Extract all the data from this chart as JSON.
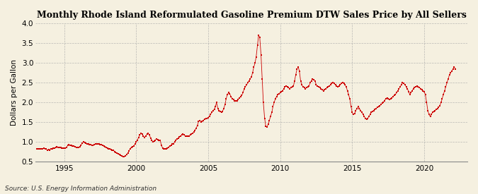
{
  "title": "Monthly Rhode Island Reformulated Gasoline Premium DTW Sales Price by All Sellers",
  "ylabel": "Dollars per Gallon",
  "source": "Source: U.S. Energy Information Administration",
  "background_color": "#f5f0e0",
  "marker_color": "#cc0000",
  "xlim": [
    1993.0,
    2023.0
  ],
  "ylim": [
    0.5,
    4.0
  ],
  "yticks": [
    0.5,
    1.0,
    1.5,
    2.0,
    2.5,
    3.0,
    3.5,
    4.0
  ],
  "xticks": [
    1995,
    2000,
    2005,
    2010,
    2015,
    2020
  ],
  "data": [
    [
      1993.08,
      0.83
    ],
    [
      1993.17,
      0.82
    ],
    [
      1993.25,
      0.83
    ],
    [
      1993.33,
      0.82
    ],
    [
      1993.42,
      0.82
    ],
    [
      1993.5,
      0.83
    ],
    [
      1993.58,
      0.84
    ],
    [
      1993.67,
      0.83
    ],
    [
      1993.75,
      0.82
    ],
    [
      1993.83,
      0.8
    ],
    [
      1993.92,
      0.81
    ],
    [
      1994.0,
      0.8
    ],
    [
      1994.08,
      0.82
    ],
    [
      1994.17,
      0.83
    ],
    [
      1994.25,
      0.84
    ],
    [
      1994.33,
      0.85
    ],
    [
      1994.42,
      0.87
    ],
    [
      1994.5,
      0.88
    ],
    [
      1994.58,
      0.87
    ],
    [
      1994.67,
      0.86
    ],
    [
      1994.75,
      0.86
    ],
    [
      1994.83,
      0.85
    ],
    [
      1994.92,
      0.85
    ],
    [
      1995.0,
      0.84
    ],
    [
      1995.08,
      0.85
    ],
    [
      1995.17,
      0.87
    ],
    [
      1995.25,
      0.92
    ],
    [
      1995.33,
      0.93
    ],
    [
      1995.42,
      0.92
    ],
    [
      1995.5,
      0.91
    ],
    [
      1995.58,
      0.9
    ],
    [
      1995.67,
      0.89
    ],
    [
      1995.75,
      0.88
    ],
    [
      1995.83,
      0.87
    ],
    [
      1995.92,
      0.86
    ],
    [
      1996.0,
      0.87
    ],
    [
      1996.08,
      0.88
    ],
    [
      1996.17,
      0.92
    ],
    [
      1996.25,
      0.97
    ],
    [
      1996.33,
      1.0
    ],
    [
      1996.42,
      0.98
    ],
    [
      1996.5,
      0.97
    ],
    [
      1996.58,
      0.96
    ],
    [
      1996.67,
      0.95
    ],
    [
      1996.75,
      0.94
    ],
    [
      1996.83,
      0.93
    ],
    [
      1996.92,
      0.92
    ],
    [
      1997.0,
      0.91
    ],
    [
      1997.08,
      0.93
    ],
    [
      1997.17,
      0.95
    ],
    [
      1997.25,
      0.96
    ],
    [
      1997.33,
      0.96
    ],
    [
      1997.42,
      0.95
    ],
    [
      1997.5,
      0.94
    ],
    [
      1997.58,
      0.93
    ],
    [
      1997.67,
      0.91
    ],
    [
      1997.75,
      0.9
    ],
    [
      1997.83,
      0.88
    ],
    [
      1997.92,
      0.86
    ],
    [
      1998.0,
      0.84
    ],
    [
      1998.08,
      0.83
    ],
    [
      1998.17,
      0.82
    ],
    [
      1998.25,
      0.81
    ],
    [
      1998.33,
      0.8
    ],
    [
      1998.42,
      0.79
    ],
    [
      1998.5,
      0.76
    ],
    [
      1998.58,
      0.74
    ],
    [
      1998.67,
      0.72
    ],
    [
      1998.75,
      0.7
    ],
    [
      1998.83,
      0.68
    ],
    [
      1998.92,
      0.66
    ],
    [
      1999.0,
      0.64
    ],
    [
      1999.08,
      0.63
    ],
    [
      1999.17,
      0.63
    ],
    [
      1999.25,
      0.65
    ],
    [
      1999.33,
      0.68
    ],
    [
      1999.42,
      0.72
    ],
    [
      1999.5,
      0.78
    ],
    [
      1999.58,
      0.83
    ],
    [
      1999.67,
      0.87
    ],
    [
      1999.75,
      0.88
    ],
    [
      1999.83,
      0.9
    ],
    [
      1999.92,
      0.95
    ],
    [
      2000.0,
      1.0
    ],
    [
      2000.08,
      1.05
    ],
    [
      2000.17,
      1.12
    ],
    [
      2000.25,
      1.18
    ],
    [
      2000.33,
      1.22
    ],
    [
      2000.42,
      1.2
    ],
    [
      2000.5,
      1.15
    ],
    [
      2000.58,
      1.12
    ],
    [
      2000.67,
      1.15
    ],
    [
      2000.75,
      1.2
    ],
    [
      2000.83,
      1.22
    ],
    [
      2000.92,
      1.18
    ],
    [
      2001.0,
      1.1
    ],
    [
      2001.08,
      1.05
    ],
    [
      2001.17,
      1.0
    ],
    [
      2001.25,
      1.02
    ],
    [
      2001.33,
      1.05
    ],
    [
      2001.42,
      1.08
    ],
    [
      2001.5,
      1.06
    ],
    [
      2001.58,
      1.05
    ],
    [
      2001.67,
      1.04
    ],
    [
      2001.75,
      0.92
    ],
    [
      2001.83,
      0.85
    ],
    [
      2001.92,
      0.82
    ],
    [
      2002.0,
      0.82
    ],
    [
      2002.08,
      0.83
    ],
    [
      2002.17,
      0.85
    ],
    [
      2002.25,
      0.87
    ],
    [
      2002.33,
      0.9
    ],
    [
      2002.42,
      0.92
    ],
    [
      2002.5,
      0.95
    ],
    [
      2002.58,
      0.95
    ],
    [
      2002.67,
      1.0
    ],
    [
      2002.75,
      1.05
    ],
    [
      2002.83,
      1.08
    ],
    [
      2002.92,
      1.1
    ],
    [
      2003.0,
      1.13
    ],
    [
      2003.08,
      1.15
    ],
    [
      2003.17,
      1.18
    ],
    [
      2003.25,
      1.2
    ],
    [
      2003.33,
      1.18
    ],
    [
      2003.42,
      1.15
    ],
    [
      2003.5,
      1.15
    ],
    [
      2003.58,
      1.15
    ],
    [
      2003.67,
      1.15
    ],
    [
      2003.75,
      1.18
    ],
    [
      2003.83,
      1.2
    ],
    [
      2003.92,
      1.22
    ],
    [
      2004.0,
      1.25
    ],
    [
      2004.08,
      1.3
    ],
    [
      2004.17,
      1.35
    ],
    [
      2004.25,
      1.42
    ],
    [
      2004.33,
      1.52
    ],
    [
      2004.42,
      1.55
    ],
    [
      2004.5,
      1.5
    ],
    [
      2004.58,
      1.52
    ],
    [
      2004.67,
      1.55
    ],
    [
      2004.75,
      1.58
    ],
    [
      2004.83,
      1.6
    ],
    [
      2004.92,
      1.6
    ],
    [
      2005.0,
      1.62
    ],
    [
      2005.08,
      1.65
    ],
    [
      2005.17,
      1.7
    ],
    [
      2005.25,
      1.75
    ],
    [
      2005.33,
      1.8
    ],
    [
      2005.42,
      1.82
    ],
    [
      2005.5,
      1.9
    ],
    [
      2005.58,
      2.0
    ],
    [
      2005.67,
      1.85
    ],
    [
      2005.75,
      1.8
    ],
    [
      2005.83,
      1.78
    ],
    [
      2005.92,
      1.75
    ],
    [
      2006.0,
      1.78
    ],
    [
      2006.08,
      1.85
    ],
    [
      2006.17,
      1.95
    ],
    [
      2006.25,
      2.1
    ],
    [
      2006.33,
      2.2
    ],
    [
      2006.42,
      2.25
    ],
    [
      2006.5,
      2.22
    ],
    [
      2006.58,
      2.15
    ],
    [
      2006.67,
      2.1
    ],
    [
      2006.75,
      2.08
    ],
    [
      2006.83,
      2.05
    ],
    [
      2006.92,
      2.05
    ],
    [
      2007.0,
      2.05
    ],
    [
      2007.08,
      2.08
    ],
    [
      2007.17,
      2.12
    ],
    [
      2007.25,
      2.15
    ],
    [
      2007.33,
      2.18
    ],
    [
      2007.42,
      2.25
    ],
    [
      2007.5,
      2.35
    ],
    [
      2007.58,
      2.4
    ],
    [
      2007.67,
      2.45
    ],
    [
      2007.75,
      2.5
    ],
    [
      2007.83,
      2.55
    ],
    [
      2007.92,
      2.6
    ],
    [
      2008.0,
      2.65
    ],
    [
      2008.08,
      2.75
    ],
    [
      2008.17,
      2.9
    ],
    [
      2008.25,
      3.0
    ],
    [
      2008.33,
      3.15
    ],
    [
      2008.42,
      3.45
    ],
    [
      2008.5,
      3.7
    ],
    [
      2008.58,
      3.65
    ],
    [
      2008.67,
      3.2
    ],
    [
      2008.75,
      2.6
    ],
    [
      2008.83,
      2.0
    ],
    [
      2008.92,
      1.6
    ],
    [
      2009.0,
      1.4
    ],
    [
      2009.08,
      1.38
    ],
    [
      2009.17,
      1.45
    ],
    [
      2009.25,
      1.55
    ],
    [
      2009.33,
      1.65
    ],
    [
      2009.42,
      1.75
    ],
    [
      2009.5,
      1.9
    ],
    [
      2009.58,
      2.0
    ],
    [
      2009.67,
      2.1
    ],
    [
      2009.75,
      2.15
    ],
    [
      2009.83,
      2.2
    ],
    [
      2009.92,
      2.22
    ],
    [
      2010.0,
      2.25
    ],
    [
      2010.08,
      2.28
    ],
    [
      2010.17,
      2.3
    ],
    [
      2010.25,
      2.35
    ],
    [
      2010.33,
      2.4
    ],
    [
      2010.42,
      2.42
    ],
    [
      2010.5,
      2.4
    ],
    [
      2010.58,
      2.38
    ],
    [
      2010.67,
      2.35
    ],
    [
      2010.75,
      2.38
    ],
    [
      2010.83,
      2.4
    ],
    [
      2010.92,
      2.42
    ],
    [
      2011.0,
      2.55
    ],
    [
      2011.08,
      2.7
    ],
    [
      2011.17,
      2.85
    ],
    [
      2011.25,
      2.9
    ],
    [
      2011.33,
      2.8
    ],
    [
      2011.42,
      2.55
    ],
    [
      2011.5,
      2.45
    ],
    [
      2011.58,
      2.4
    ],
    [
      2011.67,
      2.38
    ],
    [
      2011.75,
      2.35
    ],
    [
      2011.83,
      2.38
    ],
    [
      2011.92,
      2.4
    ],
    [
      2012.0,
      2.42
    ],
    [
      2012.08,
      2.5
    ],
    [
      2012.17,
      2.55
    ],
    [
      2012.25,
      2.6
    ],
    [
      2012.33,
      2.58
    ],
    [
      2012.42,
      2.55
    ],
    [
      2012.5,
      2.45
    ],
    [
      2012.58,
      2.42
    ],
    [
      2012.67,
      2.4
    ],
    [
      2012.75,
      2.38
    ],
    [
      2012.83,
      2.35
    ],
    [
      2012.92,
      2.32
    ],
    [
      2013.0,
      2.3
    ],
    [
      2013.08,
      2.32
    ],
    [
      2013.17,
      2.35
    ],
    [
      2013.25,
      2.38
    ],
    [
      2013.33,
      2.4
    ],
    [
      2013.42,
      2.42
    ],
    [
      2013.5,
      2.45
    ],
    [
      2013.58,
      2.48
    ],
    [
      2013.67,
      2.5
    ],
    [
      2013.75,
      2.48
    ],
    [
      2013.83,
      2.45
    ],
    [
      2013.92,
      2.42
    ],
    [
      2014.0,
      2.4
    ],
    [
      2014.08,
      2.42
    ],
    [
      2014.17,
      2.45
    ],
    [
      2014.25,
      2.48
    ],
    [
      2014.33,
      2.5
    ],
    [
      2014.42,
      2.48
    ],
    [
      2014.5,
      2.45
    ],
    [
      2014.58,
      2.4
    ],
    [
      2014.67,
      2.3
    ],
    [
      2014.75,
      2.2
    ],
    [
      2014.83,
      2.1
    ],
    [
      2014.92,
      1.9
    ],
    [
      2015.0,
      1.75
    ],
    [
      2015.08,
      1.7
    ],
    [
      2015.17,
      1.72
    ],
    [
      2015.25,
      1.8
    ],
    [
      2015.33,
      1.85
    ],
    [
      2015.42,
      1.9
    ],
    [
      2015.5,
      1.85
    ],
    [
      2015.58,
      1.8
    ],
    [
      2015.67,
      1.75
    ],
    [
      2015.75,
      1.7
    ],
    [
      2015.83,
      1.65
    ],
    [
      2015.92,
      1.6
    ],
    [
      2016.0,
      1.58
    ],
    [
      2016.08,
      1.6
    ],
    [
      2016.17,
      1.65
    ],
    [
      2016.25,
      1.7
    ],
    [
      2016.33,
      1.75
    ],
    [
      2016.42,
      1.78
    ],
    [
      2016.5,
      1.8
    ],
    [
      2016.58,
      1.82
    ],
    [
      2016.67,
      1.85
    ],
    [
      2016.75,
      1.88
    ],
    [
      2016.83,
      1.9
    ],
    [
      2016.92,
      1.92
    ],
    [
      2017.0,
      1.95
    ],
    [
      2017.08,
      1.98
    ],
    [
      2017.17,
      2.0
    ],
    [
      2017.25,
      2.05
    ],
    [
      2017.33,
      2.1
    ],
    [
      2017.42,
      2.12
    ],
    [
      2017.5,
      2.1
    ],
    [
      2017.58,
      2.08
    ],
    [
      2017.67,
      2.1
    ],
    [
      2017.75,
      2.12
    ],
    [
      2017.83,
      2.15
    ],
    [
      2017.92,
      2.18
    ],
    [
      2018.0,
      2.2
    ],
    [
      2018.08,
      2.25
    ],
    [
      2018.17,
      2.3
    ],
    [
      2018.25,
      2.35
    ],
    [
      2018.33,
      2.4
    ],
    [
      2018.42,
      2.45
    ],
    [
      2018.5,
      2.5
    ],
    [
      2018.58,
      2.48
    ],
    [
      2018.67,
      2.45
    ],
    [
      2018.75,
      2.4
    ],
    [
      2018.83,
      2.35
    ],
    [
      2018.92,
      2.28
    ],
    [
      2019.0,
      2.2
    ],
    [
      2019.08,
      2.25
    ],
    [
      2019.17,
      2.3
    ],
    [
      2019.25,
      2.35
    ],
    [
      2019.33,
      2.38
    ],
    [
      2019.42,
      2.4
    ],
    [
      2019.5,
      2.42
    ],
    [
      2019.58,
      2.4
    ],
    [
      2019.67,
      2.38
    ],
    [
      2019.75,
      2.35
    ],
    [
      2019.83,
      2.32
    ],
    [
      2019.92,
      2.3
    ],
    [
      2020.0,
      2.28
    ],
    [
      2020.08,
      2.2
    ],
    [
      2020.17,
      2.0
    ],
    [
      2020.25,
      1.8
    ],
    [
      2020.33,
      1.7
    ],
    [
      2020.42,
      1.65
    ],
    [
      2020.5,
      1.7
    ],
    [
      2020.58,
      1.75
    ],
    [
      2020.67,
      1.78
    ],
    [
      2020.75,
      1.8
    ],
    [
      2020.83,
      1.82
    ],
    [
      2020.92,
      1.85
    ],
    [
      2021.0,
      1.88
    ],
    [
      2021.08,
      1.92
    ],
    [
      2021.17,
      2.0
    ],
    [
      2021.25,
      2.1
    ],
    [
      2021.33,
      2.2
    ],
    [
      2021.42,
      2.3
    ],
    [
      2021.5,
      2.4
    ],
    [
      2021.58,
      2.5
    ],
    [
      2021.67,
      2.6
    ],
    [
      2021.75,
      2.7
    ],
    [
      2021.83,
      2.75
    ],
    [
      2021.92,
      2.8
    ],
    [
      2022.0,
      2.85
    ],
    [
      2022.08,
      2.9
    ],
    [
      2022.17,
      2.85
    ]
  ]
}
